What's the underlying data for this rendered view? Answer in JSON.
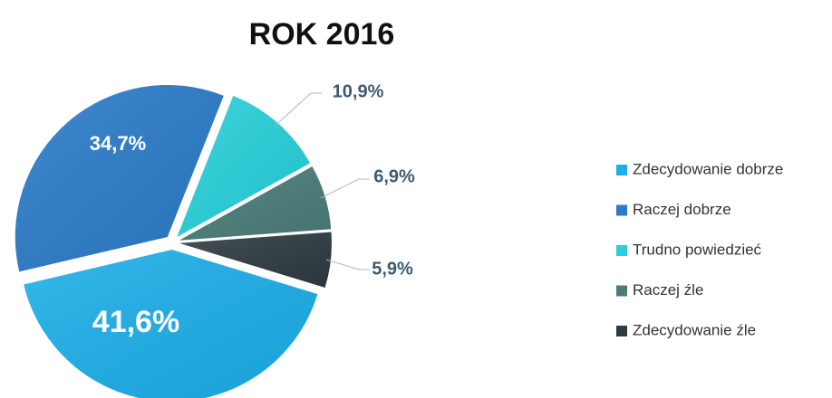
{
  "chart_data": {
    "type": "pie",
    "title": "ROK 2016",
    "categories": [
      "Zdecydowanie dobrze",
      "Raczej dobrze",
      "Trudno powiedzieć",
      "Raczej źle",
      "Zdecydowanie źle"
    ],
    "values": [
      41.6,
      34.7,
      10.9,
      6.9,
      5.9
    ],
    "value_labels": [
      "41,6%",
      "34,7%",
      "10,9%",
      "6,9%",
      "5,9%"
    ],
    "colors": [
      "#1caee8",
      "#2b7bc8",
      "#27d0da",
      "#4a7c78",
      "#2f3b41"
    ],
    "legend": "right"
  }
}
